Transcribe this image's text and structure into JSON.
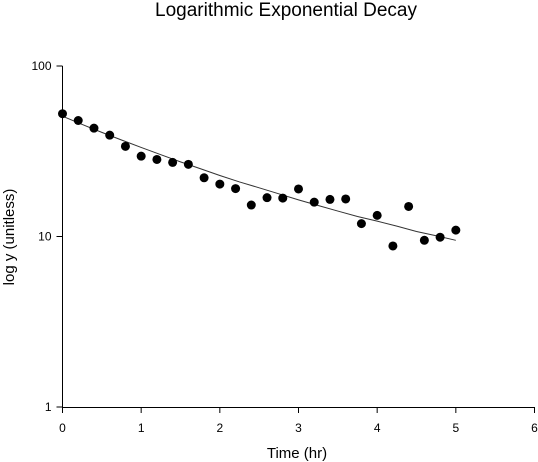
{
  "chart_data": {
    "type": "scatter",
    "title": "Logarithmic Exponential Decay",
    "xlabel": "Time (hr)",
    "ylabel": "log y (unitless)",
    "xlim": [
      0,
      6
    ],
    "ylim": [
      1,
      100
    ],
    "yscale": "log",
    "grid": false,
    "legend": "none",
    "x_ticks": [
      "0",
      "1",
      "2",
      "3",
      "4",
      "5",
      "6"
    ],
    "y_ticks": [
      "1",
      "10",
      "100"
    ],
    "x_tick_values": [
      0,
      1,
      2,
      3,
      4,
      5,
      6
    ],
    "y_tick_values": [
      1,
      10,
      100
    ],
    "series": [
      {
        "type": "scatter",
        "color": "#000000",
        "points": [
          {
            "x": 0.0,
            "y": 52.5
          },
          {
            "x": 0.2,
            "y": 47.9
          },
          {
            "x": 0.4,
            "y": 43.2
          },
          {
            "x": 0.6,
            "y": 39.3
          },
          {
            "x": 0.8,
            "y": 33.8
          },
          {
            "x": 1.0,
            "y": 29.6
          },
          {
            "x": 1.2,
            "y": 28.3
          },
          {
            "x": 1.4,
            "y": 27.2
          },
          {
            "x": 1.6,
            "y": 26.5
          },
          {
            "x": 1.8,
            "y": 22.1
          },
          {
            "x": 2.0,
            "y": 20.3
          },
          {
            "x": 2.2,
            "y": 19.1
          },
          {
            "x": 2.4,
            "y": 15.3
          },
          {
            "x": 2.6,
            "y": 16.9
          },
          {
            "x": 2.8,
            "y": 16.8
          },
          {
            "x": 3.0,
            "y": 19.0
          },
          {
            "x": 3.2,
            "y": 15.9
          },
          {
            "x": 3.4,
            "y": 16.5
          },
          {
            "x": 3.6,
            "y": 16.6
          },
          {
            "x": 3.8,
            "y": 11.9
          },
          {
            "x": 4.0,
            "y": 13.3
          },
          {
            "x": 4.2,
            "y": 8.8
          },
          {
            "x": 4.4,
            "y": 15.0
          },
          {
            "x": 4.6,
            "y": 9.5
          },
          {
            "x": 4.8,
            "y": 9.9
          },
          {
            "x": 5.0,
            "y": 10.9
          }
        ]
      },
      {
        "type": "line",
        "color": "#333333",
        "x": [
          0.0,
          0.25,
          0.5,
          0.75,
          1.0,
          1.25,
          1.5,
          1.75,
          2.0,
          2.25,
          2.5,
          2.75,
          3.0,
          3.25,
          3.5,
          3.75,
          4.0,
          4.25,
          4.5,
          4.75,
          5.0
        ],
        "y": [
          50.8,
          45.4,
          40.8,
          36.8,
          33.3,
          30.2,
          27.4,
          25.0,
          22.8,
          20.9,
          19.3,
          17.8,
          16.4,
          15.2,
          14.1,
          13.1,
          12.3,
          11.5,
          10.7,
          10.1,
          9.5
        ]
      }
    ]
  }
}
